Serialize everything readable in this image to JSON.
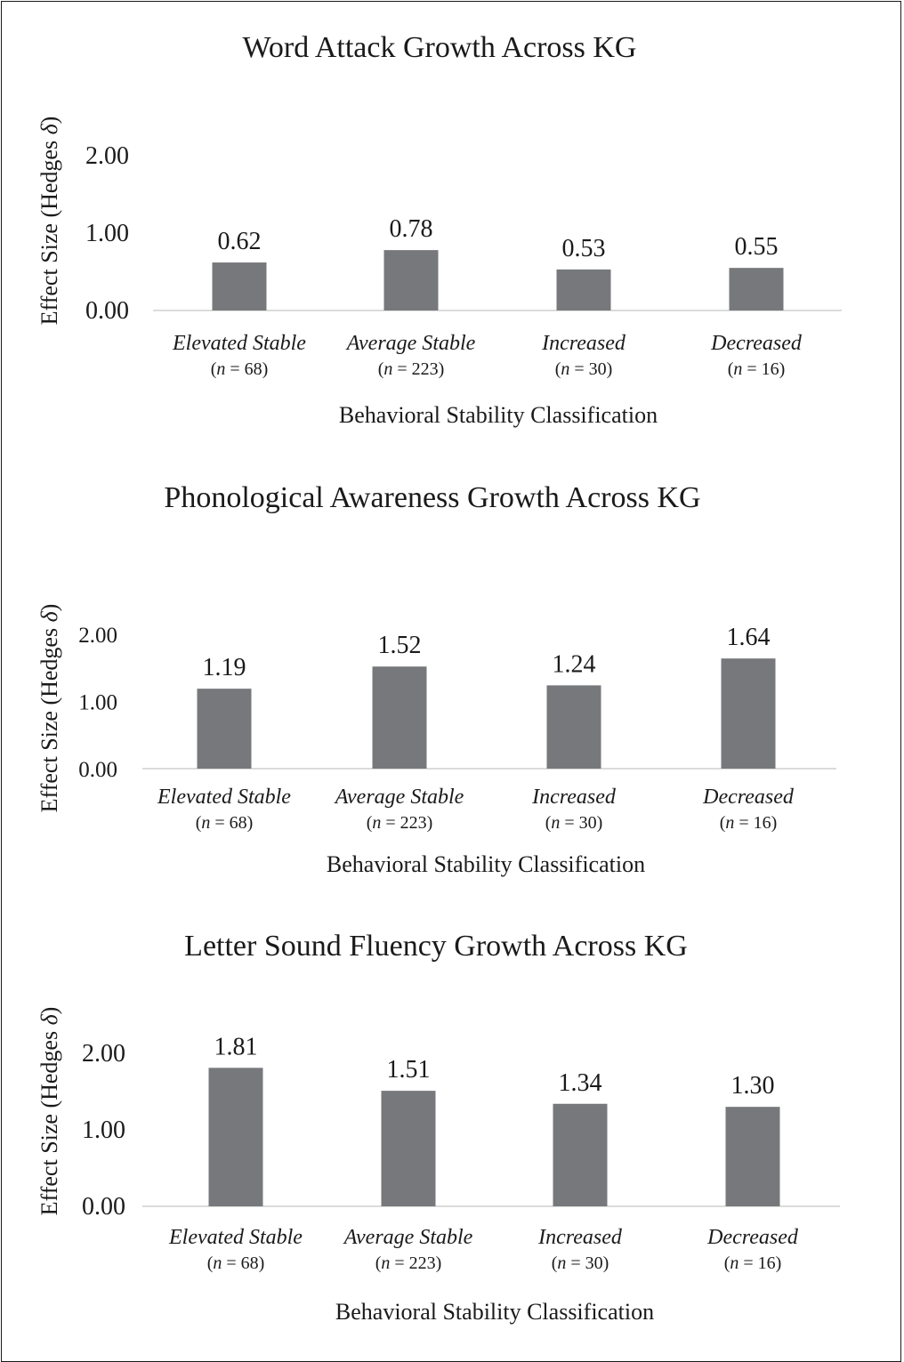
{
  "chart_data": [
    {
      "type": "bar",
      "title": "Word Attack Growth Across KG",
      "ylabel": "Effect Size (Hedges δ)",
      "xlabel": "Behavioral Stability Classification",
      "categories": [
        "Elevated Stable",
        "Average Stable",
        "Increased",
        "Decreased"
      ],
      "category_n": [
        "68",
        "223",
        "30",
        "16"
      ],
      "values": [
        0.62,
        0.78,
        0.53,
        0.55
      ],
      "data_labels": [
        "0.62",
        "0.78",
        "0.53",
        "0.55"
      ],
      "yticks": [
        "0.00",
        "1.00",
        "2.00"
      ],
      "ylim": [
        0,
        2
      ],
      "bar_color": "#77787b",
      "grid": false
    },
    {
      "type": "bar",
      "title": "Phonological Awareness Growth Across KG",
      "ylabel": "Effect Size (Hedges δ)",
      "xlabel": "Behavioral Stability Classification",
      "categories": [
        "Elevated Stable",
        "Average Stable",
        "Increased",
        "Decreased"
      ],
      "category_n": [
        "68",
        "223",
        "30",
        "16"
      ],
      "values": [
        1.19,
        1.52,
        1.24,
        1.64
      ],
      "data_labels": [
        "1.19",
        "1.52",
        "1.24",
        "1.64"
      ],
      "yticks": [
        "0.00",
        "1.00",
        "2.00"
      ],
      "ylim": [
        0,
        2
      ],
      "bar_color": "#77787b",
      "grid": false
    },
    {
      "type": "bar",
      "title": "Letter Sound Fluency Growth Across KG",
      "ylabel": "Effect Size (Hedges δ)",
      "xlabel": "Behavioral Stability Classification",
      "categories": [
        "Elevated Stable",
        "Average Stable",
        "Increased",
        "Decreased"
      ],
      "category_n": [
        "68",
        "223",
        "30",
        "16"
      ],
      "values": [
        1.81,
        1.51,
        1.34,
        1.3
      ],
      "data_labels": [
        "1.81",
        "1.51",
        "1.34",
        "1.30"
      ],
      "yticks": [
        "0.00",
        "1.00",
        "2.00"
      ],
      "ylim": [
        0,
        2
      ],
      "bar_color": "#77787b",
      "grid": false
    }
  ]
}
